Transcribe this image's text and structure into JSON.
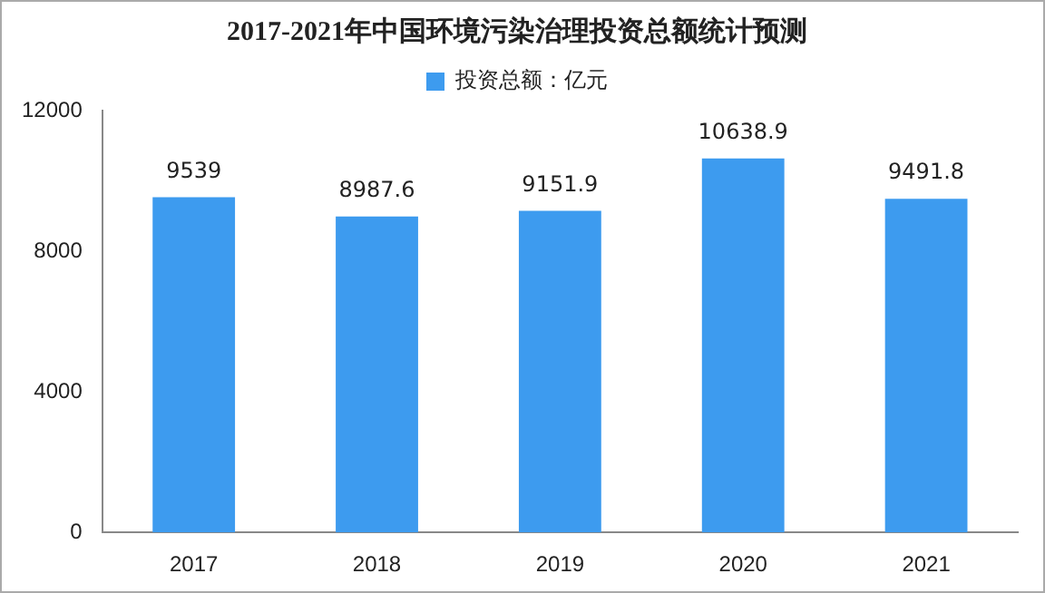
{
  "chart_data": {
    "type": "bar",
    "title": "2017-2021年中国环境污染治理投资总额统计预测",
    "categories": [
      "2017",
      "2018",
      "2019",
      "2020",
      "2021"
    ],
    "series": [
      {
        "name": "投资总额：亿元",
        "color": "#3d9bef",
        "values": [
          9539,
          8987.6,
          9151.9,
          10638.9,
          9491.8
        ]
      }
    ],
    "ylim": [
      0,
      12000
    ],
    "yticks": [
      0,
      4000,
      8000,
      12000
    ],
    "grid": false,
    "legend": "top",
    "data_labels": true
  }
}
